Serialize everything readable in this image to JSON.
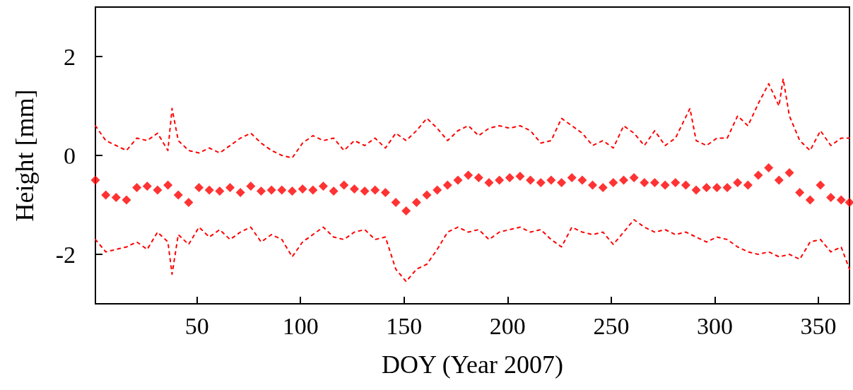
{
  "chart_data": {
    "type": "scatter",
    "xlabel": "DOY (Year 2007)",
    "ylabel": "Height [mm]",
    "xlim": [
      1,
      365
    ],
    "xticks": [
      50,
      100,
      150,
      200,
      250,
      300,
      350
    ],
    "ylim": [
      -3,
      3
    ],
    "yticks": [
      -2,
      0,
      2
    ],
    "grid": false,
    "series": [
      {
        "type": "line",
        "color": "#ff0000",
        "marker": "none",
        "line_style": "dashed",
        "x": [
          1,
          6,
          11,
          16,
          21,
          26,
          31,
          36,
          38,
          41,
          46,
          51,
          56,
          61,
          66,
          71,
          76,
          81,
          86,
          91,
          96,
          101,
          106,
          111,
          116,
          121,
          126,
          131,
          136,
          141,
          146,
          151,
          156,
          161,
          166,
          171,
          176,
          181,
          186,
          191,
          196,
          201,
          206,
          211,
          216,
          221,
          226,
          231,
          236,
          241,
          246,
          251,
          256,
          261,
          266,
          271,
          276,
          281,
          288,
          291,
          296,
          301,
          306,
          311,
          316,
          321,
          326,
          331,
          333,
          336,
          341,
          346,
          351,
          356,
          361,
          365
        ],
        "values": [
          0.6,
          0.3,
          0.2,
          0.1,
          0.35,
          0.3,
          0.45,
          0.1,
          0.95,
          0.3,
          0.1,
          0.05,
          0.15,
          0.05,
          0.2,
          0.35,
          0.45,
          0.25,
          0.1,
          0.0,
          -0.05,
          0.25,
          0.4,
          0.3,
          0.35,
          0.1,
          0.3,
          0.2,
          0.35,
          0.15,
          0.45,
          0.3,
          0.5,
          0.75,
          0.55,
          0.3,
          0.5,
          0.6,
          0.4,
          0.55,
          0.6,
          0.55,
          0.6,
          0.5,
          0.25,
          0.3,
          0.75,
          0.6,
          0.45,
          0.2,
          0.3,
          0.15,
          0.6,
          0.45,
          0.2,
          0.5,
          0.2,
          0.35,
          0.95,
          0.3,
          0.2,
          0.35,
          0.35,
          0.8,
          0.6,
          1.05,
          1.45,
          1.0,
          1.55,
          0.8,
          0.3,
          0.1,
          0.5,
          0.2,
          0.35,
          0.35
        ]
      },
      {
        "color": "#ff0000",
        "marker": "diamond",
        "x": [
          1,
          6,
          11,
          16,
          21,
          26,
          31,
          36,
          41,
          46,
          51,
          56,
          61,
          66,
          71,
          76,
          81,
          86,
          91,
          96,
          101,
          106,
          111,
          116,
          121,
          126,
          131,
          136,
          141,
          146,
          151,
          156,
          161,
          166,
          171,
          176,
          181,
          186,
          191,
          196,
          201,
          206,
          211,
          216,
          221,
          226,
          231,
          236,
          241,
          246,
          251,
          256,
          261,
          266,
          271,
          276,
          281,
          286,
          291,
          296,
          301,
          306,
          311,
          316,
          321,
          326,
          331,
          336,
          341,
          346,
          351,
          356,
          361,
          365
        ],
        "values": [
          -0.5,
          -0.8,
          -0.85,
          -0.9,
          -0.65,
          -0.62,
          -0.7,
          -0.6,
          -0.8,
          -0.95,
          -0.65,
          -0.7,
          -0.72,
          -0.65,
          -0.75,
          -0.62,
          -0.72,
          -0.7,
          -0.7,
          -0.72,
          -0.68,
          -0.7,
          -0.62,
          -0.72,
          -0.6,
          -0.68,
          -0.72,
          -0.7,
          -0.75,
          -0.95,
          -1.12,
          -0.95,
          -0.8,
          -0.7,
          -0.6,
          -0.5,
          -0.4,
          -0.45,
          -0.55,
          -0.5,
          -0.45,
          -0.42,
          -0.5,
          -0.55,
          -0.5,
          -0.55,
          -0.45,
          -0.5,
          -0.6,
          -0.65,
          -0.55,
          -0.5,
          -0.45,
          -0.55,
          -0.55,
          -0.6,
          -0.55,
          -0.6,
          -0.7,
          -0.65,
          -0.65,
          -0.65,
          -0.55,
          -0.6,
          -0.4,
          -0.25,
          -0.5,
          -0.35,
          -0.75,
          -0.9,
          -0.6,
          -0.85,
          -0.9,
          -0.95
        ]
      },
      {
        "type": "line",
        "color": "#ff0000",
        "marker": "none",
        "line_style": "dashed",
        "x": [
          1,
          6,
          11,
          16,
          21,
          26,
          31,
          36,
          38,
          41,
          46,
          51,
          56,
          61,
          66,
          71,
          76,
          81,
          86,
          91,
          96,
          101,
          106,
          111,
          116,
          121,
          126,
          131,
          136,
          141,
          146,
          151,
          156,
          161,
          166,
          171,
          176,
          181,
          186,
          191,
          196,
          201,
          206,
          211,
          216,
          221,
          226,
          231,
          236,
          241,
          246,
          251,
          256,
          261,
          266,
          271,
          276,
          281,
          286,
          291,
          296,
          301,
          306,
          311,
          316,
          321,
          326,
          331,
          336,
          341,
          346,
          351,
          356,
          361,
          365
        ],
        "values": [
          -1.7,
          -1.95,
          -1.9,
          -1.85,
          -1.75,
          -1.9,
          -1.55,
          -1.75,
          -2.4,
          -1.6,
          -1.8,
          -1.45,
          -1.65,
          -1.5,
          -1.7,
          -1.55,
          -1.45,
          -1.75,
          -1.6,
          -1.7,
          -2.05,
          -1.75,
          -1.6,
          -1.45,
          -1.65,
          -1.7,
          -1.55,
          -1.5,
          -1.7,
          -1.65,
          -2.3,
          -2.55,
          -2.3,
          -2.2,
          -1.9,
          -1.55,
          -1.45,
          -1.55,
          -1.5,
          -1.7,
          -1.55,
          -1.5,
          -1.45,
          -1.55,
          -1.5,
          -1.7,
          -1.85,
          -1.45,
          -1.55,
          -1.6,
          -1.55,
          -1.8,
          -1.55,
          -1.3,
          -1.45,
          -1.55,
          -1.5,
          -1.6,
          -1.55,
          -1.65,
          -1.75,
          -1.65,
          -1.7,
          -1.85,
          -1.95,
          -2.0,
          -1.95,
          -2.05,
          -2.0,
          -2.1,
          -1.75,
          -1.7,
          -1.95,
          -1.85,
          -2.3
        ]
      }
    ]
  }
}
